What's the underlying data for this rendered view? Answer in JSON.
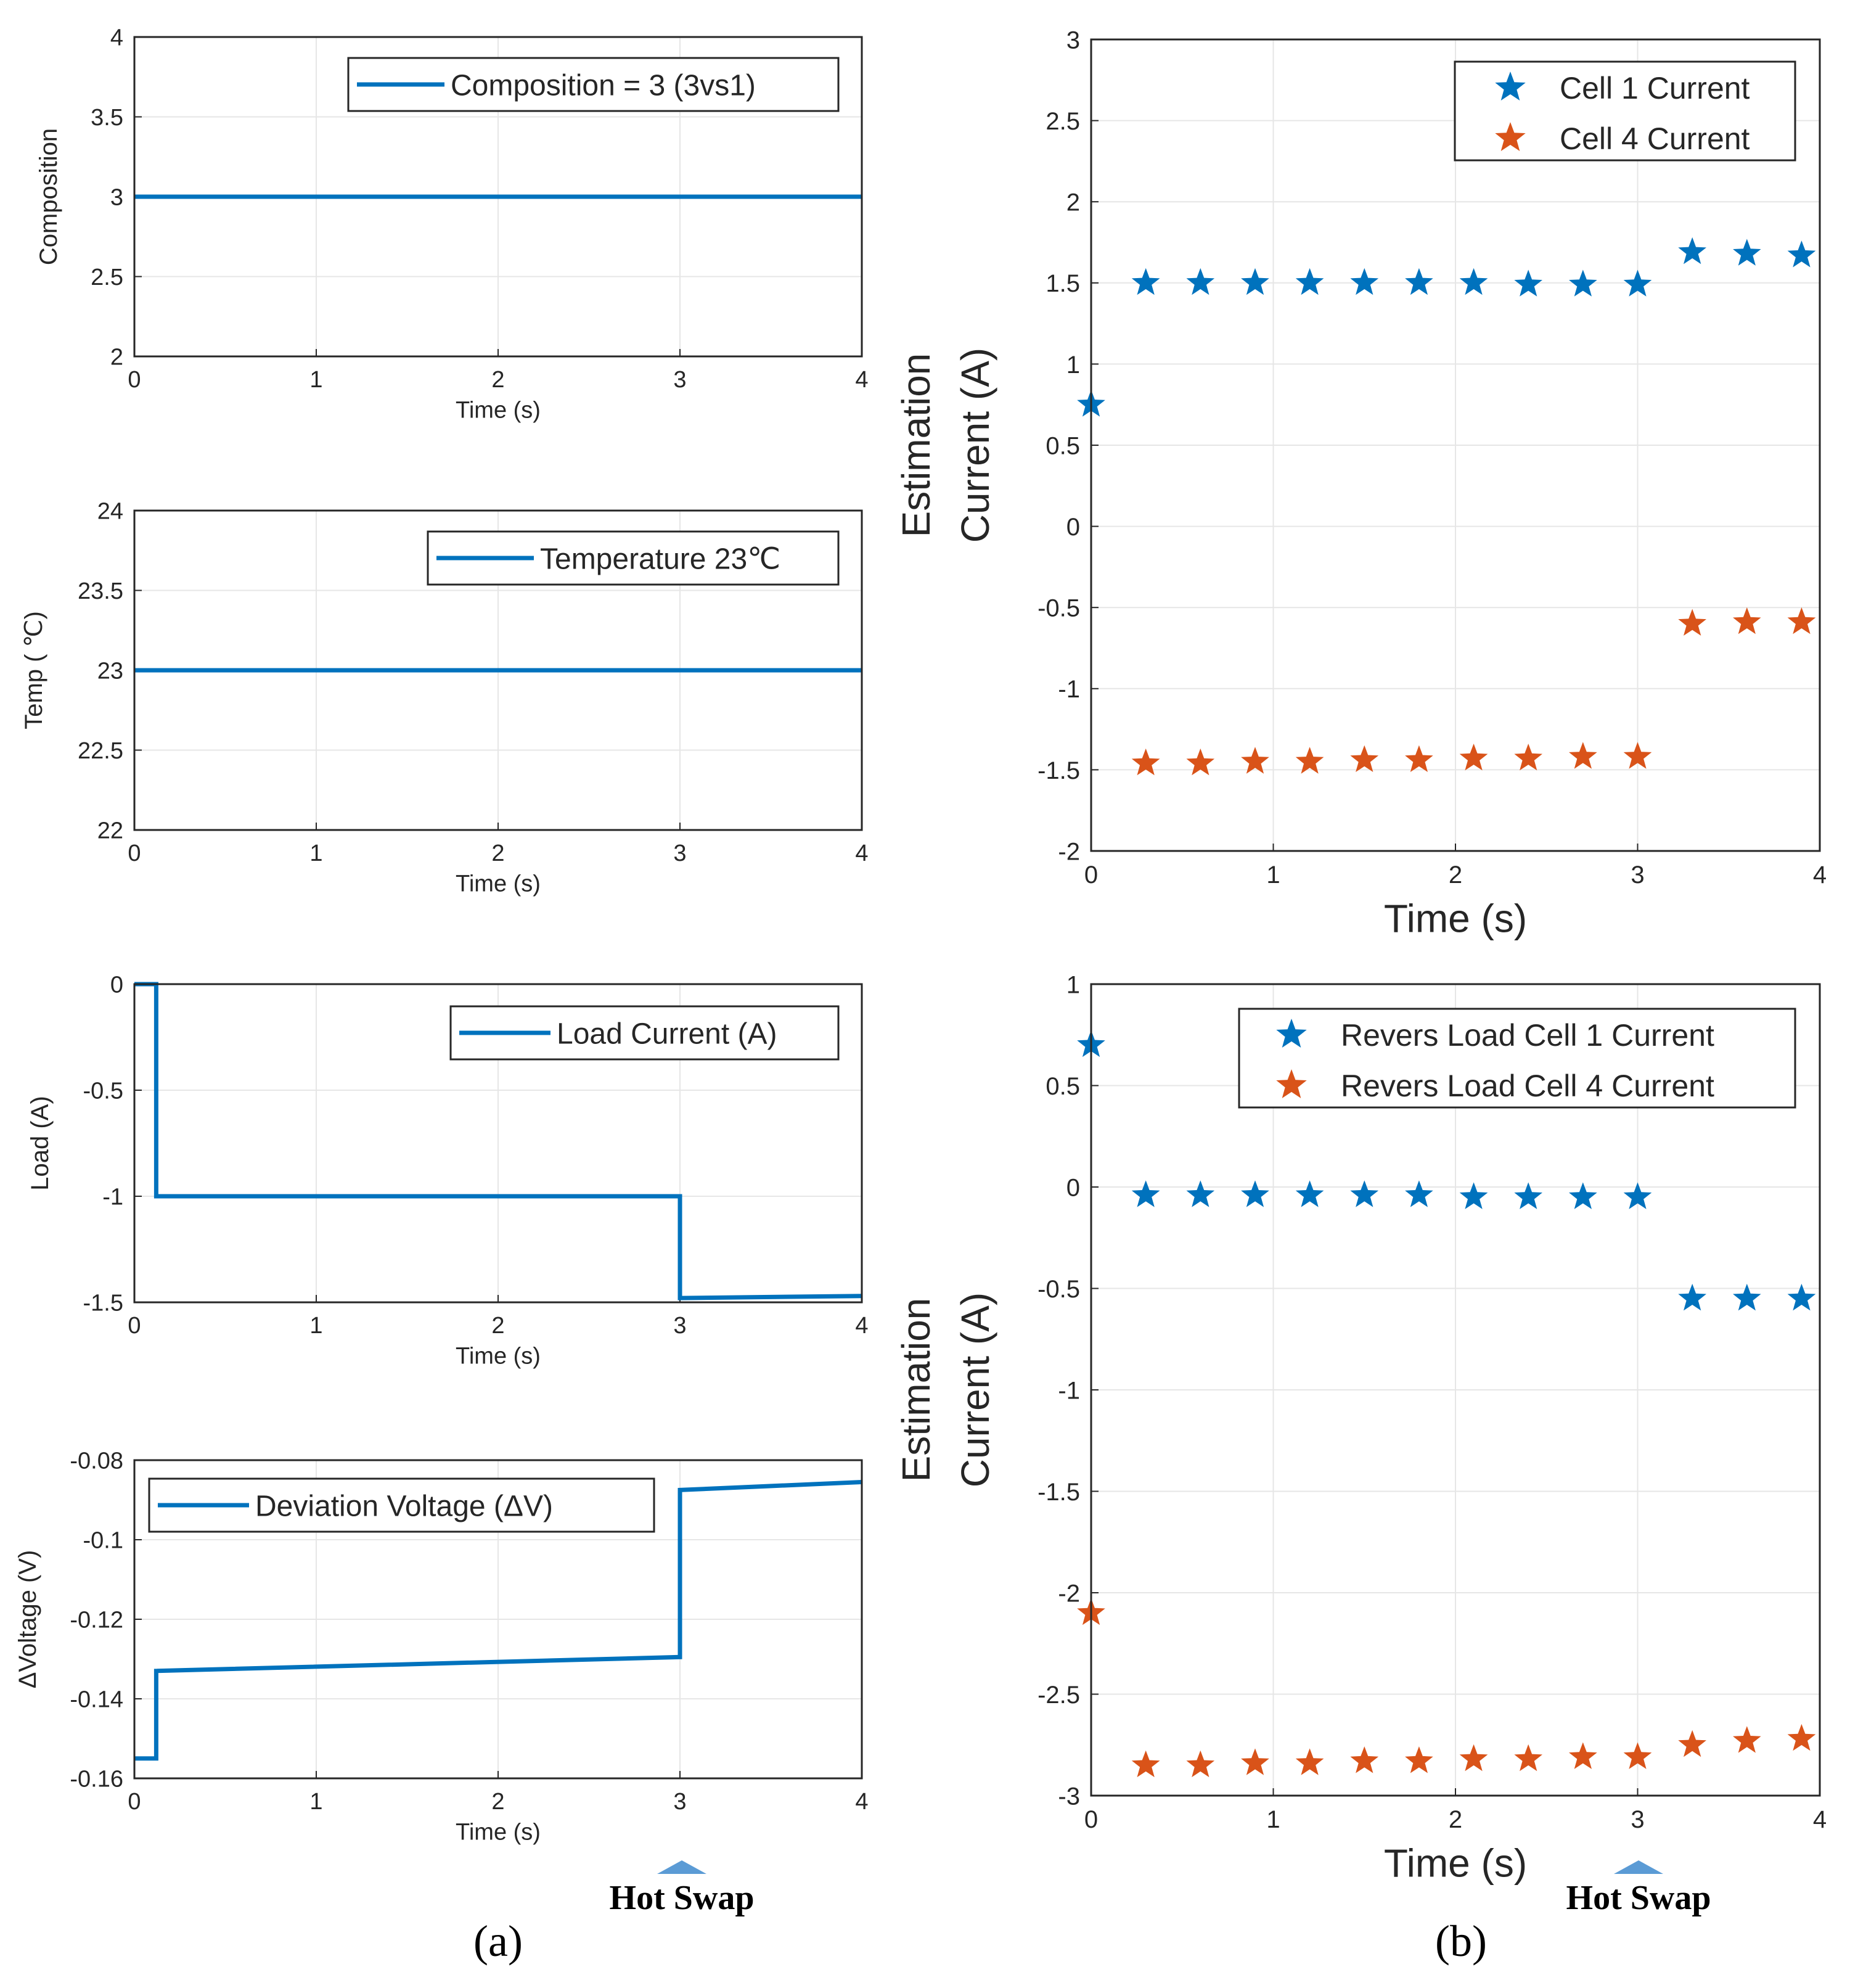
{
  "colors": {
    "blue": "#0072BD",
    "orange": "#D95319",
    "grid": "#E6E6E6",
    "axis": "#262626",
    "arrow": "#5B9BD5"
  },
  "annotations": {
    "hot_swap_a": "Hot Swap",
    "hot_swap_b": "Hot Swap",
    "panel_a": "(a)",
    "panel_b": "(b)"
  },
  "chart_data": [
    {
      "id": "composition",
      "type": "line",
      "xlabel": "Time (s)",
      "ylabel": "Composition",
      "xlim": [
        0,
        4
      ],
      "ylim": [
        2,
        4
      ],
      "xticks": [
        0,
        1,
        2,
        3,
        4
      ],
      "yticks": [
        2,
        2.5,
        3,
        3.5,
        4
      ],
      "grid": true,
      "legend_position": "top-right",
      "series": [
        {
          "name": "Composition = 3 (3vs1)",
          "color": "blue",
          "x": [
            0,
            4
          ],
          "y": [
            3,
            3
          ]
        }
      ]
    },
    {
      "id": "temperature",
      "type": "line",
      "xlabel": "Time (s)",
      "ylabel": "Temp ( ℃)",
      "xlim": [
        0,
        4
      ],
      "ylim": [
        22,
        24
      ],
      "xticks": [
        0,
        1,
        2,
        3,
        4
      ],
      "yticks": [
        22,
        22.5,
        23,
        23.5,
        24
      ],
      "grid": true,
      "legend_position": "top-right",
      "series": [
        {
          "name": "Temperature 23℃",
          "color": "blue",
          "x": [
            0,
            4
          ],
          "y": [
            23,
            23
          ]
        }
      ]
    },
    {
      "id": "load",
      "type": "line",
      "xlabel": "Time (s)",
      "ylabel": "Load (A)",
      "xlim": [
        0,
        4
      ],
      "ylim": [
        -1.5,
        0
      ],
      "xticks": [
        0,
        1,
        2,
        3,
        4
      ],
      "yticks": [
        -1.5,
        -1,
        -0.5,
        0
      ],
      "grid": true,
      "legend_position": "top-right",
      "series": [
        {
          "name": "Load Current (A)",
          "color": "blue",
          "x": [
            0,
            0.12,
            0.12,
            3.0,
            3.0,
            4.0
          ],
          "y": [
            0,
            0,
            -1,
            -1,
            -1.48,
            -1.47
          ]
        }
      ]
    },
    {
      "id": "deviation",
      "type": "line",
      "xlabel": "Time (s)",
      "ylabel": "ΔVoltage (V)",
      "xlim": [
        0,
        4
      ],
      "ylim": [
        -0.16,
        -0.08
      ],
      "xticks": [
        0,
        1,
        2,
        3,
        4
      ],
      "yticks": [
        -0.16,
        -0.14,
        -0.12,
        -0.1,
        -0.08
      ],
      "grid": true,
      "legend_position": "top-left",
      "series": [
        {
          "name": "Deviation Voltage (ΔV)",
          "color": "blue",
          "x": [
            0,
            0.12,
            0.12,
            3.0,
            3.0,
            4.0
          ],
          "y": [
            -0.155,
            -0.155,
            -0.133,
            -0.1295,
            -0.0875,
            -0.0855
          ]
        }
      ]
    },
    {
      "id": "cell_current",
      "type": "scatter",
      "xlabel": "Time (s)",
      "ylabel_line1": "Estimation",
      "ylabel_line2": "Current (A)",
      "xlim": [
        0,
        4
      ],
      "ylim": [
        -2,
        3
      ],
      "xticks": [
        0,
        1,
        2,
        3,
        4
      ],
      "yticks": [
        -2,
        -1.5,
        -1,
        -0.5,
        0,
        0.5,
        1,
        1.5,
        2,
        2.5,
        3
      ],
      "grid": true,
      "legend_position": "top-right",
      "series": [
        {
          "name": "Cell 1 Current",
          "color": "blue",
          "x": [
            0,
            0.3,
            0.6,
            0.9,
            1.2,
            1.5,
            1.8,
            2.1,
            2.4,
            2.7,
            3.0,
            3.3,
            3.6,
            3.9
          ],
          "y": [
            0.75,
            1.5,
            1.5,
            1.5,
            1.5,
            1.5,
            1.5,
            1.5,
            1.49,
            1.49,
            1.49,
            1.69,
            1.68,
            1.67
          ]
        },
        {
          "name": "Cell 4 Current",
          "color": "orange",
          "x": [
            0.3,
            0.6,
            0.9,
            1.2,
            1.5,
            1.8,
            2.1,
            2.4,
            2.7,
            3.0,
            3.3,
            3.6,
            3.9
          ],
          "y": [
            -1.46,
            -1.46,
            -1.45,
            -1.45,
            -1.44,
            -1.44,
            -1.43,
            -1.43,
            -1.42,
            -1.42,
            -0.6,
            -0.59,
            -0.59
          ]
        }
      ]
    },
    {
      "id": "reverse_load",
      "type": "scatter",
      "xlabel": "Time (s)",
      "ylabel_line1": "Estimation",
      "ylabel_line2": "Current (A)",
      "xlim": [
        0,
        4
      ],
      "ylim": [
        -3,
        1
      ],
      "xticks": [
        0,
        1,
        2,
        3,
        4
      ],
      "yticks": [
        -3,
        -2.5,
        -2,
        -1.5,
        -1,
        -0.5,
        0,
        0.5,
        1
      ],
      "grid": true,
      "legend_position": "top-right",
      "series": [
        {
          "name": "Revers Load Cell 1 Current",
          "color": "blue",
          "x": [
            0,
            0.3,
            0.6,
            0.9,
            1.2,
            1.5,
            1.8,
            2.1,
            2.4,
            2.7,
            3.0,
            3.3,
            3.6,
            3.9
          ],
          "y": [
            0.7,
            -0.04,
            -0.04,
            -0.04,
            -0.04,
            -0.04,
            -0.04,
            -0.05,
            -0.05,
            -0.05,
            -0.05,
            -0.55,
            -0.55,
            -0.55
          ]
        },
        {
          "name": "Revers Load Cell 4 Current",
          "color": "orange",
          "x": [
            0,
            0.3,
            0.6,
            0.9,
            1.2,
            1.5,
            1.8,
            2.1,
            2.4,
            2.7,
            3.0,
            3.3,
            3.6,
            3.9
          ],
          "y": [
            -2.1,
            -2.85,
            -2.85,
            -2.84,
            -2.84,
            -2.83,
            -2.83,
            -2.82,
            -2.82,
            -2.81,
            -2.81,
            -2.75,
            -2.73,
            -2.72
          ]
        }
      ]
    }
  ]
}
